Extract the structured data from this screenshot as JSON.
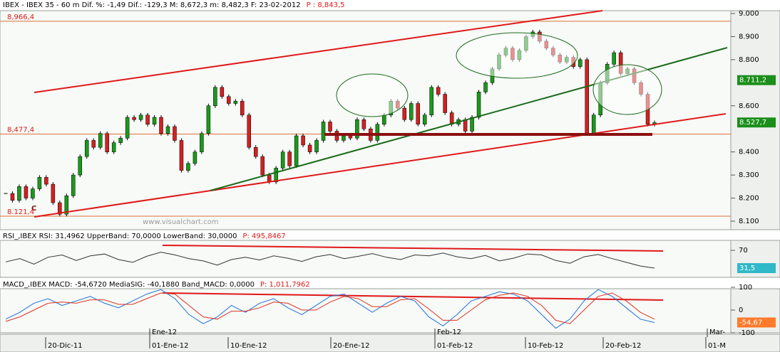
{
  "chart_data": [
    {
      "type": "candlestick",
      "title": "IBEX - IBEX 35 - 60 m Dif. %: -1,49 Dif.: -129,3 M: 8,672,3 m: 8,482,3 F: 23-02-2012",
      "last_price": "P : 8,843,5",
      "ylim": [
        8100,
        9000
      ],
      "yticks": [
        {
          "value": 9000,
          "label": "9.000"
        },
        {
          "value": 8900,
          "label": "8.900"
        },
        {
          "value": 8800,
          "label": "8.800"
        },
        {
          "value": 8600,
          "label": "8.600"
        },
        {
          "value": 8400,
          "label": "8.400"
        },
        {
          "value": 8300,
          "label": "8.300"
        },
        {
          "value": 8200,
          "label": "8.200"
        },
        {
          "value": 8100,
          "label": "8.100"
        }
      ],
      "levels": [
        {
          "value": 8966.4,
          "label": "8,966,4"
        },
        {
          "value": 8477.4,
          "label": "8,477,4"
        },
        {
          "value": 8121.4,
          "label": "8.121,4"
        }
      ],
      "markers": [
        {
          "value": 8711.2,
          "label": "8.711,2",
          "color": "#1a8f1a"
        },
        {
          "value": 8527.7,
          "label": "8.527,7",
          "color": "#1a8f1a"
        }
      ],
      "up_color": "#1a9a1a",
      "down_color": "#d42020",
      "values": [
        8220,
        8190,
        8250,
        8200,
        8240,
        8290,
        8260,
        8180,
        8130,
        8210,
        8300,
        8380,
        8450,
        8420,
        8480,
        8400,
        8440,
        8460,
        8550,
        8540,
        8560,
        8520,
        8550,
        8480,
        8510,
        8450,
        8320,
        8350,
        8400,
        8480,
        8600,
        8680,
        8640,
        8610,
        8620,
        8560,
        8420,
        8380,
        8300,
        8270,
        8330,
        8400,
        8340,
        8470,
        8430,
        8400,
        8450,
        8530,
        8490,
        8450,
        8470,
        8460,
        8540,
        8500,
        8450,
        8520,
        8560,
        8620,
        8590,
        8540,
        8610,
        8520,
        8560,
        8680,
        8650,
        8570,
        8520,
        8540,
        8490,
        8550,
        8660,
        8700,
        8760,
        8820,
        8850,
        8800,
        8840,
        8900,
        8920,
        8880,
        8850,
        8820,
        8790,
        8810,
        8770,
        8800,
        8480,
        8560,
        8700,
        8780,
        8830,
        8740,
        8760,
        8700,
        8650,
        8520,
        8527
      ],
      "watermark": "www.visualchart.com",
      "annotation": "C",
      "x_top_labels": [
        "Ene-12",
        "Feb-12",
        "Mar-"
      ],
      "x_labels": [
        "20-Dic-11",
        "01-Ene-12",
        "10-Ene-12",
        "20-Ene-12",
        "01-Feb-12",
        "10-Feb-12",
        "20-Feb-12",
        "01-M"
      ]
    },
    {
      "type": "line",
      "title": "RSI_,IBEX RSI: 31,4962 UpperBand: 70,0000 LowerBand: 30,0000",
      "last_price": "P: 495,8467",
      "ylim": [
        30,
        70
      ],
      "yticks": [
        70
      ],
      "marker": {
        "value": 31.5,
        "label": "31,5"
      },
      "color": "#333333",
      "values": [
        45,
        52,
        40,
        55,
        60,
        48,
        58,
        62,
        50,
        44,
        57,
        66,
        60,
        52,
        47,
        38,
        50,
        55,
        49,
        58,
        53,
        46,
        56,
        61,
        52,
        57,
        63,
        55,
        50,
        60,
        58,
        64,
        56,
        52,
        59,
        47,
        53,
        62,
        60,
        48,
        42,
        56,
        61,
        52,
        44,
        36,
        31.5
      ]
    },
    {
      "type": "line",
      "title": "MACD_,IBEX MACD: -54,6720 MediaSIG: -40,1880 Band_MACD: 0,0000",
      "last_price": "P: 1,011,7962",
      "ylim": [
        -100,
        100
      ],
      "yticks": [
        100,
        0,
        -100
      ],
      "marker": {
        "value": -54.67,
        "label": "-54,67"
      },
      "series": [
        {
          "color": "#1e6fd9",
          "values": [
            -40,
            -10,
            30,
            50,
            20,
            40,
            60,
            30,
            10,
            40,
            70,
            90,
            50,
            -20,
            -60,
            -30,
            20,
            -10,
            30,
            50,
            10,
            -20,
            20,
            60,
            70,
            30,
            -10,
            30,
            60,
            40,
            -30,
            -70,
            -20,
            40,
            60,
            80,
            70,
            40,
            -20,
            -80,
            -40,
            40,
            90,
            60,
            10,
            -40,
            -54.67
          ]
        },
        {
          "color": "#e03020",
          "values": [
            -50,
            -30,
            0,
            30,
            35,
            30,
            45,
            45,
            25,
            25,
            50,
            75,
            70,
            20,
            -30,
            -40,
            -5,
            -5,
            10,
            35,
            30,
            0,
            0,
            35,
            60,
            50,
            15,
            15,
            45,
            50,
            5,
            -45,
            -45,
            0,
            45,
            65,
            75,
            60,
            20,
            -45,
            -60,
            0,
            60,
            75,
            40,
            -10,
            -40
          ]
        }
      ]
    }
  ]
}
